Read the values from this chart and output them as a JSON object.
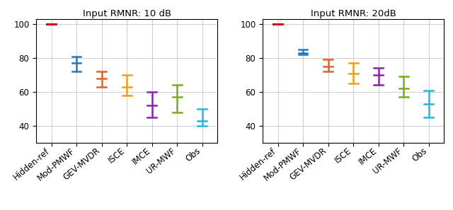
{
  "title_left": "Input RMNR: 10 dB",
  "title_right": "Input RMNR: 20dB",
  "categories": [
    "Hidden-ref",
    "Mod-PMWF",
    "GEV-MVDR",
    "ISCE",
    "IMCE",
    "UR-MWF",
    "Obs"
  ],
  "colors": [
    "#dd0000",
    "#2878b5",
    "#e0622a",
    "#e8a020",
    "#8b22aa",
    "#78aa22",
    "#22b8dd"
  ],
  "ylim": [
    30,
    103
  ],
  "yticks": [
    40,
    60,
    80,
    100
  ],
  "panel_left": {
    "centers": [
      100,
      77,
      68,
      63,
      52,
      57,
      43
    ],
    "lower_err": [
      0,
      5,
      5,
      5,
      7,
      9,
      3
    ],
    "upper_err": [
      0,
      4,
      4,
      7,
      8,
      7,
      7
    ]
  },
  "panel_right": {
    "centers": [
      100,
      83,
      75,
      71,
      70,
      62,
      53
    ],
    "lower_err": [
      0,
      1,
      3,
      6,
      6,
      5,
      8
    ],
    "upper_err": [
      0,
      2,
      4,
      6,
      4,
      7,
      8
    ]
  },
  "figsize": [
    6.4,
    2.97
  ],
  "dpi": 100
}
